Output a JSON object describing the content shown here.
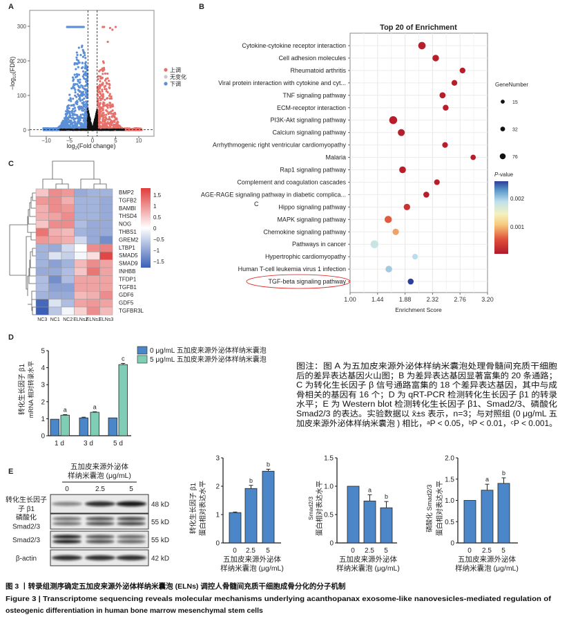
{
  "panels": {
    "A": "A",
    "B": "B",
    "C": "C",
    "D": "D",
    "E": "E"
  },
  "stray_label": "C",
  "colors": {
    "up": "#e8706a",
    "none": "#c8c8c8",
    "down": "#5b8fd6",
    "bar_control": "#4a86c8",
    "bar_treated": "#7fcdb5",
    "highlight_oval": "#e03030"
  },
  "chart_data": [
    {
      "type": "scatter",
      "panel": "A",
      "xlabel": {
        "pre": "log",
        "sub": "2",
        "post": "(Fold change)"
      },
      "ylabel": {
        "pre": "−log",
        "sub": "10",
        "post": "(FDR)"
      },
      "xlim": [
        -13.5,
        13.5
      ],
      "ylim": [
        -6,
        345
      ],
      "x_ticks": [
        -10,
        -5,
        0,
        5,
        10
      ],
      "y_ticks": [
        0,
        100,
        200,
        300
      ],
      "thresholds": {
        "log2fc": [
          -1,
          1
        ],
        "fdr": 0.05
      },
      "legend": [
        {
          "label": "上调",
          "color": "#e8706a"
        },
        {
          "label": "无变化",
          "color": "#c8c8c8"
        },
        {
          "label": "下调",
          "color": "#5b8fd6"
        }
      ],
      "legend_placement": "right",
      "grid": false
    },
    {
      "type": "scatter",
      "panel": "B",
      "title": "Top 20 of  Enrichment",
      "xlabel": "Enrichment Score",
      "xlim": [
        1.0,
        3.2
      ],
      "x_ticks": [
        "1.00",
        "1.44",
        "1.88",
        "2.32",
        "2.76",
        "3.20"
      ],
      "grid": true,
      "size_legend": {
        "title": "GeneNumber",
        "values": [
          15,
          32,
          76
        ]
      },
      "color_legend": {
        "title_italic": "P",
        "title_rest": "-value",
        "ticks": [
          "0.002",
          "0.001"
        ],
        "range": [
          5e-05,
          0.0026
        ]
      },
      "pathways": [
        {
          "name": "Cytokine-cytokine receptor interaction",
          "score": 2.15,
          "genes": 60,
          "p": 0.0001
        },
        {
          "name": "Cell adhesion molecules",
          "score": 2.37,
          "genes": 38,
          "p": 0.0001
        },
        {
          "name": "Rheumatoid arthritis",
          "score": 2.8,
          "genes": 22,
          "p": 0.0001
        },
        {
          "name": "Viral protein interaction with cytokine and cyt...",
          "score": 2.67,
          "genes": 22,
          "p": 0.0001
        },
        {
          "name": "TNF signaling pathway",
          "score": 2.48,
          "genes": 28,
          "p": 0.0001
        },
        {
          "name": "ECM-receptor interaction",
          "score": 2.53,
          "genes": 23,
          "p": 0.0001
        },
        {
          "name": "PI3K-Akt signaling pathway",
          "score": 1.69,
          "genes": 76,
          "p": 0.0001
        },
        {
          "name": "Calcium signaling pathway",
          "score": 1.82,
          "genes": 48,
          "p": 0.0001
        },
        {
          "name": "Arrhythmogenic right ventricular cardiomyopathy",
          "score": 2.52,
          "genes": 20,
          "p": 0.0001
        },
        {
          "name": "Malaria",
          "score": 2.97,
          "genes": 15,
          "p": 0.0001
        },
        {
          "name": "Rap1 signaling pathway",
          "score": 1.84,
          "genes": 42,
          "p": 0.0001
        },
        {
          "name": "Complement and coagulation cascades",
          "score": 2.39,
          "genes": 20,
          "p": 0.0001
        },
        {
          "name": "AGE-RAGE signaling pathway in diabetic complica...",
          "score": 2.22,
          "genes": 25,
          "p": 0.0001
        },
        {
          "name": "Hippo signaling pathway",
          "score": 1.91,
          "genes": 36,
          "p": 0.0003
        },
        {
          "name": "MAPK signaling pathway",
          "score": 1.61,
          "genes": 55,
          "p": 0.0006
        },
        {
          "name": "Chemokine signaling pathway",
          "score": 1.73,
          "genes": 35,
          "p": 0.0009
        },
        {
          "name": "Pathways in cancer",
          "score": 1.39,
          "genes": 76,
          "p": 0.0018
        },
        {
          "name": "Hypertrophic cardiomyopathy",
          "score": 2.04,
          "genes": 20,
          "p": 0.0019
        },
        {
          "name": "Human T-cell leukemia virus 1 infection",
          "score": 1.62,
          "genes": 40,
          "p": 0.002
        },
        {
          "name": "TGF-beta signaling pathway",
          "score": 1.97,
          "genes": 25,
          "p": 0.0026,
          "highlighted": true
        }
      ]
    },
    {
      "type": "heatmap",
      "panel": "C",
      "columns": [
        "NC3",
        "NC1",
        "NC2",
        "ELNs2",
        "ELNs1",
        "ELNs3"
      ],
      "color_range": [
        -1.7,
        1.7
      ],
      "color_ticks": [
        "1.5",
        "1",
        "0.5",
        "0",
        "−0.5",
        "−1",
        "−1.5"
      ],
      "rows": [
        {
          "gene": "BMP2",
          "values": [
            0.5,
            1.0,
            0.9,
            -0.9,
            -0.8,
            -0.8
          ]
        },
        {
          "gene": "TGFB2",
          "values": [
            0.9,
            1.0,
            0.7,
            -0.8,
            -0.8,
            -0.9
          ]
        },
        {
          "gene": "BAMBI",
          "values": [
            0.7,
            1.0,
            0.9,
            -0.8,
            -0.8,
            -0.9
          ]
        },
        {
          "gene": "THSD4",
          "values": [
            0.7,
            0.8,
            1.0,
            -0.8,
            -0.8,
            -0.9
          ]
        },
        {
          "gene": "NOG",
          "values": [
            0.5,
            1.0,
            1.0,
            -0.7,
            -0.9,
            -0.9
          ]
        },
        {
          "gene": "THBS1",
          "values": [
            1.2,
            0.7,
            0.6,
            -0.8,
            -0.9,
            -0.9
          ]
        },
        {
          "gene": "GREM2",
          "values": [
            0.9,
            0.8,
            0.7,
            -0.4,
            -0.9,
            -1.2
          ]
        },
        {
          "gene": "LTBP1",
          "values": [
            -0.8,
            -0.9,
            -0.4,
            0.0,
            1.0,
            1.1
          ]
        },
        {
          "gene": "SMAD5",
          "values": [
            -0.8,
            -0.3,
            -0.5,
            -0.1,
            0.3,
            1.6
          ]
        },
        {
          "gene": "SMAD9",
          "values": [
            -0.8,
            -1.0,
            -0.8,
            0.6,
            1.0,
            0.8
          ]
        },
        {
          "gene": "INHBB",
          "values": [
            -0.9,
            -0.9,
            -0.7,
            0.5,
            1.2,
            0.8
          ]
        },
        {
          "gene": "TFDP1",
          "values": [
            -0.7,
            -1.2,
            -0.7,
            0.8,
            0.8,
            0.8
          ]
        },
        {
          "gene": "TGFB1",
          "values": [
            -0.7,
            -1.0,
            -1.0,
            0.8,
            0.8,
            0.8
          ]
        },
        {
          "gene": "GDF6",
          "values": [
            -0.8,
            -0.9,
            -0.9,
            0.6,
            0.7,
            1.0
          ]
        },
        {
          "gene": "GDF5",
          "values": [
            -1.6,
            -0.3,
            -0.7,
            0.8,
            0.9,
            0.8
          ]
        },
        {
          "gene": "TGFBR3L",
          "values": [
            -1.7,
            -0.6,
            -0.1,
            0.4,
            1.0,
            0.6
          ]
        }
      ]
    },
    {
      "type": "bar",
      "panel": "D",
      "categories": [
        "1 d",
        "3 d",
        "5 d"
      ],
      "ylabel": [
        "转化生长因子 β1",
        "mRNA 相对转录水平"
      ],
      "ylim": [
        0,
        5
      ],
      "y_ticks": [
        "0",
        "1",
        "2",
        "3",
        "4",
        "5"
      ],
      "series": [
        {
          "name": "0 μg/mL 五加皮来源外泌体样纳米囊泡",
          "values": [
            0.97,
            1.05,
            1.05
          ],
          "errors": [
            0,
            0.04,
            0
          ],
          "letters": [
            "",
            "",
            ""
          ]
        },
        {
          "name": "5 μg/mL 五加皮来源外泌体样纳米囊泡",
          "values": [
            1.21,
            1.38,
            4.18
          ],
          "errors": [
            0.03,
            0.03,
            0.07
          ],
          "letters": [
            "a",
            "a",
            "c"
          ]
        }
      ]
    },
    {
      "type": "bar",
      "panel": "E-1",
      "categories": [
        "0",
        "2.5",
        "5"
      ],
      "ylabel": [
        "转化生长因子 β1",
        "蛋白相对表达水平"
      ],
      "xlabel": [
        "五加皮来源外泌体",
        "样纳米囊泡 (μg/mL)"
      ],
      "ylim": [
        0,
        3
      ],
      "y_ticks": [
        "0",
        "1",
        "2",
        "3"
      ],
      "values": [
        1.07,
        1.92,
        2.53
      ],
      "errors": [
        0.02,
        0.11,
        0.07
      ],
      "letters": [
        "",
        "b",
        "b"
      ]
    },
    {
      "type": "bar",
      "panel": "E-2",
      "categories": [
        "0",
        "2.5",
        "5"
      ],
      "ylabel": [
        "Smad2/3",
        "蛋白相对表达水平"
      ],
      "xlabel": [
        "五加皮来源外泌体",
        "样纳米囊泡 (μg/mL)"
      ],
      "ylim": [
        0,
        1.5
      ],
      "y_ticks": [
        "0",
        "0.5",
        "1.0",
        "1.5"
      ],
      "values": [
        1.0,
        0.74,
        0.62
      ],
      "errors": [
        0,
        0.11,
        0.11
      ],
      "letters": [
        "",
        "a",
        "b"
      ]
    },
    {
      "type": "bar",
      "panel": "E-3",
      "categories": [
        "0",
        "2.5",
        "5"
      ],
      "ylabel": [
        "磷酸化 Smad2/3",
        "蛋白相对表达水平"
      ],
      "xlabel": [
        "五加皮来源外泌体",
        "样纳米囊泡 (μg/mL)"
      ],
      "ylim": [
        0,
        2.0
      ],
      "y_ticks": [
        "0",
        "0.5",
        "1.0",
        "1.5",
        "2.0"
      ],
      "values": [
        1.0,
        1.24,
        1.4
      ],
      "errors": [
        0,
        0.14,
        0.13
      ],
      "letters": [
        "",
        "a",
        "b"
      ]
    }
  ],
  "western_blot": {
    "header": [
      "五加皮来源外泌体",
      "样纳米囊泡 (μg/mL)"
    ],
    "lanes": [
      "0",
      "2.5",
      "5"
    ],
    "rows": [
      {
        "label": [
          "转化生长因子",
          "子 β1"
        ],
        "size": "48 kD",
        "intensity": [
          0.45,
          0.85,
          0.95
        ],
        "double": false
      },
      {
        "label": [
          "磷酸化",
          "Smad2/3"
        ],
        "size": "55 kD",
        "intensity": [
          0.55,
          0.7,
          0.75
        ],
        "double": true
      },
      {
        "label": [
          "Smad2/3"
        ],
        "size": "55 kD",
        "intensity": [
          0.95,
          0.7,
          0.6
        ],
        "double": true
      },
      {
        "label": [
          "β-actin"
        ],
        "size": "42 kD",
        "intensity": [
          0.85,
          0.85,
          0.85
        ],
        "double": false
      }
    ]
  },
  "note": {
    "lines": [
      "图注：图 A 为五加皮来源外泌体样纳米囊泡处理骨髓间充质干细胞",
      "后的差异表达基因火山图；B 为差异表达基因显著富集的 20 条通路；",
      "C 为转化生长因子 β 信号通路富集的 18 个差异表达基因，其中与成",
      "骨相关的基因有 16 个；D 为 qRT-PCR 检测转化生长因子 β1 的转录",
      "水平；E 为 Western blot 检测转化生长因子 β1、Smad2/3、磷酸化",
      "Smad2/3 的表达。实验数据以 x̄±s 表示，n=3；与对照组 (0 μg/mL 五",
      "加皮来源外泌体样纳米囊泡 ) 相比，ᵃP < 0.05，ᵇP < 0.01，ᶜP < 0.001。"
    ]
  },
  "caption": {
    "cn": "图 3 丨转录组测序确定五加皮来源外泌体样纳米囊泡 (ELNs) 调控人骨髓间充质干细胞成骨分化的分子机制",
    "en_line1": "Figure 3  |  Transcriptome sequencing reveals molecular mechanisms underlying acanthopanax exosome-like nanovesicles-mediated regulation of",
    "en_line2": "osteogenic differentiation in human bone marrow mesenchymal stem cells"
  }
}
